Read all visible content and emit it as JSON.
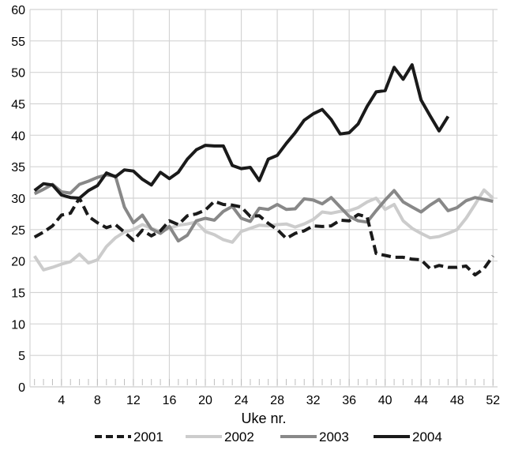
{
  "chart_data": {
    "type": "line",
    "title": "",
    "xlabel": "Uke nr.",
    "ylabel": "",
    "xlim": [
      1,
      52
    ],
    "ylim": [
      0,
      60
    ],
    "x_ticks": [
      4,
      8,
      12,
      16,
      20,
      24,
      28,
      32,
      36,
      40,
      44,
      48,
      52
    ],
    "y_ticks": [
      0,
      5,
      10,
      15,
      20,
      25,
      30,
      35,
      40,
      45,
      50,
      55,
      60
    ],
    "grid": true,
    "legend_position": "bottom",
    "series": [
      {
        "name": "2001",
        "color": "#1a1a1a",
        "style": "dashed",
        "x": [
          1,
          2,
          3,
          4,
          5,
          6,
          7,
          8,
          9,
          10,
          11,
          12,
          13,
          14,
          15,
          16,
          17,
          18,
          19,
          20,
          21,
          22,
          23,
          24,
          25,
          26,
          27,
          28,
          29,
          30,
          31,
          32,
          33,
          34,
          35,
          36,
          37,
          38,
          39,
          40,
          41,
          42,
          43,
          44,
          45,
          46,
          47,
          48,
          49,
          50,
          51,
          52
        ],
        "values": [
          23.8,
          24.6,
          25.6,
          27.3,
          27.6,
          30.0,
          27.1,
          26.1,
          25.3,
          25.8,
          24.6,
          23.3,
          24.9,
          24.0,
          24.8,
          26.4,
          25.8,
          27.2,
          27.5,
          28.1,
          29.5,
          29.0,
          28.9,
          28.6,
          27.1,
          27.2,
          26.0,
          25.0,
          23.6,
          24.4,
          24.8,
          25.6,
          25.5,
          25.6,
          26.5,
          26.4,
          27.4,
          27.0,
          21.2,
          20.9,
          20.6,
          20.6,
          20.3,
          20.2,
          18.8,
          19.3,
          19.0,
          19.0,
          19.2,
          17.8,
          18.8,
          20.8
        ]
      },
      {
        "name": "2002",
        "color": "#cccccc",
        "style": "solid",
        "x": [
          1,
          2,
          3,
          4,
          5,
          6,
          7,
          8,
          9,
          10,
          11,
          12,
          13,
          14,
          15,
          16,
          17,
          18,
          19,
          20,
          21,
          22,
          23,
          24,
          25,
          26,
          27,
          28,
          29,
          30,
          31,
          32,
          33,
          34,
          35,
          36,
          37,
          38,
          39,
          40,
          41,
          42,
          43,
          44,
          45,
          46,
          47,
          48,
          49,
          50,
          51,
          52
        ],
        "values": [
          20.8,
          18.6,
          19.0,
          19.5,
          19.9,
          21.1,
          19.7,
          20.2,
          22.3,
          23.7,
          24.6,
          25.0,
          25.8,
          25.2,
          24.7,
          25.2,
          25.7,
          25.9,
          26.2,
          24.7,
          24.2,
          23.4,
          23.0,
          24.7,
          25.2,
          25.7,
          25.6,
          25.8,
          25.9,
          25.4,
          25.9,
          26.6,
          27.8,
          27.6,
          27.9,
          28.0,
          28.5,
          29.4,
          30.0,
          28.2,
          29.0,
          26.4,
          25.2,
          24.4,
          23.7,
          23.9,
          24.4,
          25.0,
          26.8,
          29.0,
          31.3,
          30.0
        ]
      },
      {
        "name": "2003",
        "color": "#888888",
        "style": "solid",
        "x": [
          1,
          2,
          3,
          4,
          5,
          6,
          7,
          8,
          9,
          10,
          11,
          12,
          13,
          14,
          15,
          16,
          17,
          18,
          19,
          20,
          21,
          22,
          23,
          24,
          25,
          26,
          27,
          28,
          29,
          30,
          31,
          32,
          33,
          34,
          35,
          36,
          37,
          38,
          39,
          40,
          41,
          42,
          43,
          44,
          45,
          46,
          47,
          48,
          49,
          50,
          51,
          52
        ],
        "values": [
          30.7,
          31.4,
          32.2,
          31.0,
          30.8,
          32.2,
          32.7,
          33.3,
          33.7,
          33.5,
          28.6,
          26.1,
          27.3,
          25.1,
          24.4,
          25.5,
          23.2,
          24.1,
          26.4,
          26.8,
          26.5,
          27.9,
          28.7,
          26.8,
          26.3,
          28.4,
          28.2,
          29.0,
          28.2,
          28.3,
          29.9,
          29.7,
          29.1,
          30.1,
          28.6,
          27.1,
          26.4,
          26.2,
          28.0,
          29.7,
          31.2,
          29.4,
          28.6,
          27.8,
          28.9,
          29.8,
          28.0,
          28.5,
          29.6,
          30.1,
          29.8,
          29.5
        ]
      },
      {
        "name": "2004",
        "color": "#1a1a1a",
        "style": "solid",
        "x": [
          1,
          2,
          3,
          4,
          5,
          6,
          7,
          8,
          9,
          10,
          11,
          12,
          13,
          14,
          15,
          16,
          17,
          18,
          19,
          20,
          21,
          22,
          23,
          24,
          25,
          26,
          27,
          28,
          29,
          30,
          31,
          32,
          33,
          34,
          35,
          36,
          37,
          38,
          39,
          40,
          41,
          42,
          43,
          44,
          45,
          46,
          47
        ],
        "values": [
          31.2,
          32.3,
          32.1,
          30.5,
          30.1,
          30.0,
          31.2,
          32.0,
          34.0,
          33.4,
          34.5,
          34.3,
          33.0,
          32.1,
          34.1,
          33.1,
          34.1,
          36.2,
          37.7,
          38.4,
          38.3,
          38.3,
          35.2,
          34.7,
          34.9,
          32.8,
          36.2,
          36.8,
          38.7,
          40.4,
          42.4,
          43.4,
          44.1,
          42.5,
          40.2,
          40.4,
          41.8,
          44.6,
          46.9,
          47.1,
          50.8,
          48.9,
          51.2,
          45.6,
          43.1,
          40.7,
          43.0
        ]
      }
    ]
  }
}
